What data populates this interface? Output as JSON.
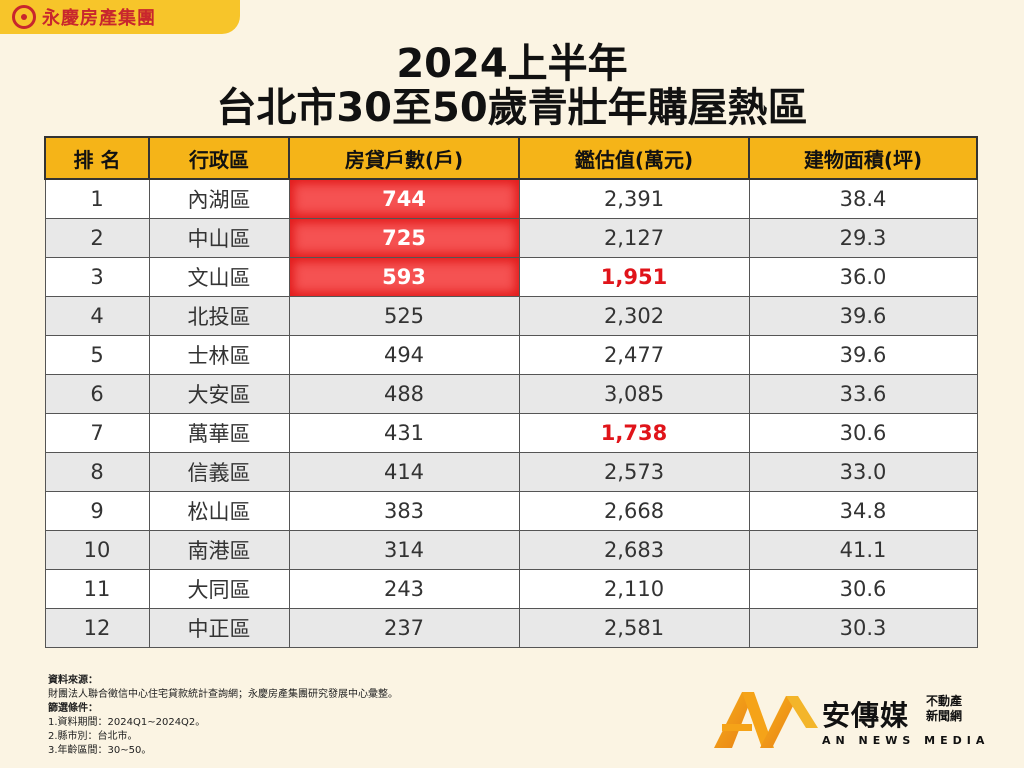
{
  "logo": {
    "text": "永慶房產集團"
  },
  "title": {
    "line1": "2024上半年",
    "line2": "台北市30至50歲青壯年購屋熱區"
  },
  "chart_data": {
    "type": "table",
    "columns": [
      "排 名",
      "行政區",
      "房貸戶數(戶)",
      "鑑估值(萬元)",
      "建物面積(坪)"
    ],
    "rows": [
      {
        "rank": "1",
        "district": "內湖區",
        "loans": "744",
        "value": "2,391",
        "area": "38.4",
        "hot_loans": true,
        "red_value": false
      },
      {
        "rank": "2",
        "district": "中山區",
        "loans": "725",
        "value": "2,127",
        "area": "29.3",
        "hot_loans": true,
        "red_value": false
      },
      {
        "rank": "3",
        "district": "文山區",
        "loans": "593",
        "value": "1,951",
        "area": "36.0",
        "hot_loans": true,
        "red_value": true
      },
      {
        "rank": "4",
        "district": "北投區",
        "loans": "525",
        "value": "2,302",
        "area": "39.6",
        "hot_loans": false,
        "red_value": false
      },
      {
        "rank": "5",
        "district": "士林區",
        "loans": "494",
        "value": "2,477",
        "area": "39.6",
        "hot_loans": false,
        "red_value": false
      },
      {
        "rank": "6",
        "district": "大安區",
        "loans": "488",
        "value": "3,085",
        "area": "33.6",
        "hot_loans": false,
        "red_value": false
      },
      {
        "rank": "7",
        "district": "萬華區",
        "loans": "431",
        "value": "1,738",
        "area": "30.6",
        "hot_loans": false,
        "red_value": true
      },
      {
        "rank": "8",
        "district": "信義區",
        "loans": "414",
        "value": "2,573",
        "area": "33.0",
        "hot_loans": false,
        "red_value": false
      },
      {
        "rank": "9",
        "district": "松山區",
        "loans": "383",
        "value": "2,668",
        "area": "34.8",
        "hot_loans": false,
        "red_value": false
      },
      {
        "rank": "10",
        "district": "南港區",
        "loans": "314",
        "value": "2,683",
        "area": "41.1",
        "hot_loans": false,
        "red_value": false
      },
      {
        "rank": "11",
        "district": "大同區",
        "loans": "243",
        "value": "2,110",
        "area": "30.6",
        "hot_loans": false,
        "red_value": false
      },
      {
        "rank": "12",
        "district": "中正區",
        "loans": "237",
        "value": "2,581",
        "area": "30.3",
        "hot_loans": false,
        "red_value": false
      }
    ]
  },
  "source": {
    "heading": "資料來源：",
    "text": "財團法人聯合徵信中心住宅貸款統計查詢網；永慶房產集團研究發展中心彙整。",
    "filter_heading": "篩選條件：",
    "conditions": [
      "1.資料期間：2024Q1~2024Q2。",
      "2.縣市別：台北市。",
      "3.年齡區間：30~50。"
    ]
  },
  "brand": {
    "name": "安傳媒",
    "sub1": "不動產",
    "sub2": "新聞網",
    "english": "AN NEWS MEDIA"
  },
  "colors": {
    "header": "#f5b418",
    "hot": "#f55252",
    "red_text": "#e0141a",
    "logo_tab": "#f7c52a"
  }
}
